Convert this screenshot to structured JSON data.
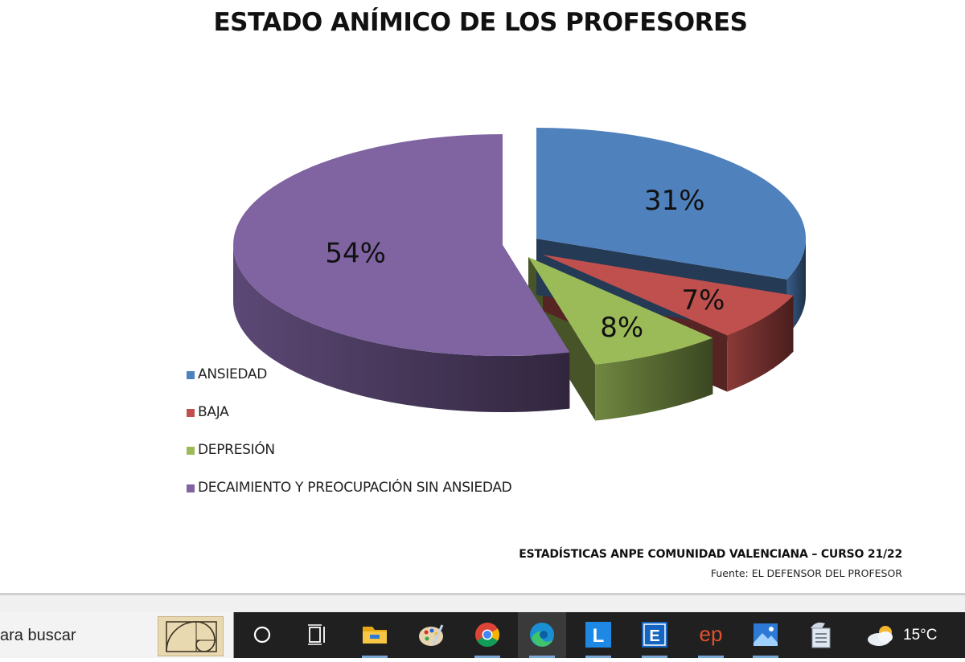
{
  "document": {
    "title": "ESTADO ANÍMICO DE LOS PROFESORES",
    "footer_main": "ESTADÍSTICAS ANPE COMUNIDAD VALENCIANA – CURSO 21/22",
    "footer_sub": "Fuente: EL DEFENSOR DEL PROFESOR"
  },
  "chart_data": {
    "type": "pie",
    "style": "3d-exploded",
    "title": "ESTADO ANÍMICO DE LOS PROFESORES",
    "categories": [
      "ANSIEDAD",
      "BAJA",
      "DEPRESIÓN",
      "DECAIMIENTO Y PREOCUPACIÓN SIN ANSIEDAD"
    ],
    "values": [
      31,
      7,
      8,
      54
    ],
    "labels": [
      "31%",
      "7%",
      "8%",
      "54%"
    ],
    "colors": [
      "#4f81bd",
      "#c0504d",
      "#9bbb59",
      "#8064a2"
    ],
    "legend_position": "left"
  },
  "taskbar": {
    "search_placeholder": "ara buscar",
    "icons": [
      "cortana-icon",
      "task-view-icon",
      "file-explorer-icon",
      "paint-icon",
      "chrome-icon",
      "edge-icon",
      "l-app-icon",
      "e-app-icon",
      "ep-app-icon",
      "photos-icon",
      "document-scanner-icon"
    ],
    "ep_text": "ep",
    "l_text": "L",
    "e_text": "E",
    "weather_icon": "cloud-sun-icon",
    "temperature": "15°C"
  }
}
